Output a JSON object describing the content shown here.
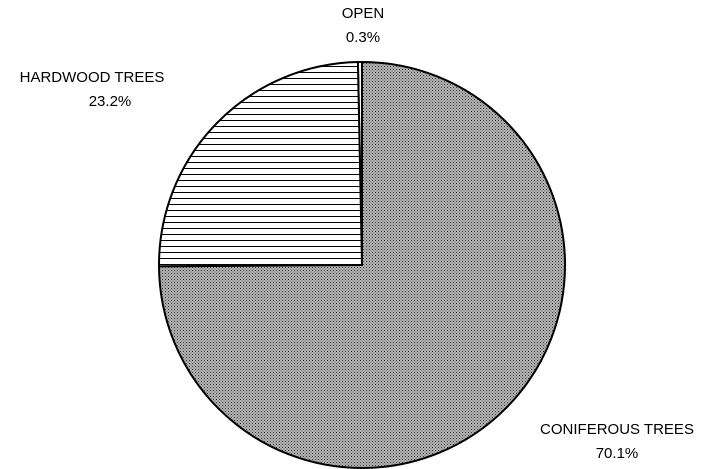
{
  "chart_data": {
    "type": "pie",
    "categories": [
      "OPEN",
      "HARDWOOD TREES",
      "CONIFEROUS TREES"
    ],
    "values": [
      0.3,
      23.2,
      70.1
    ],
    "value_labels": [
      "0.3%",
      "23.2%",
      "70.1%"
    ]
  }
}
